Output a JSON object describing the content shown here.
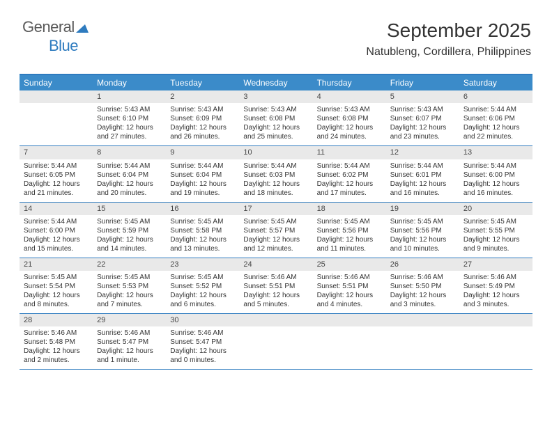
{
  "logo": {
    "part1": "General",
    "part2": "Blue"
  },
  "title": "September 2025",
  "location": "Natubleng, Cordillera, Philippines",
  "colors": {
    "header_bg": "#3b8bc9",
    "header_border": "#2e7bbf",
    "daynum_bg": "#e9e9e9",
    "text": "#333333",
    "logo_dark": "#5a5a5a",
    "logo_blue": "#2e7bbf"
  },
  "dow": [
    "Sunday",
    "Monday",
    "Tuesday",
    "Wednesday",
    "Thursday",
    "Friday",
    "Saturday"
  ],
  "weeks": [
    [
      {
        "empty": true
      },
      {
        "d": "1",
        "sr": "Sunrise: 5:43 AM",
        "ss": "Sunset: 6:10 PM",
        "dl1": "Daylight: 12 hours",
        "dl2": "and 27 minutes."
      },
      {
        "d": "2",
        "sr": "Sunrise: 5:43 AM",
        "ss": "Sunset: 6:09 PM",
        "dl1": "Daylight: 12 hours",
        "dl2": "and 26 minutes."
      },
      {
        "d": "3",
        "sr": "Sunrise: 5:43 AM",
        "ss": "Sunset: 6:08 PM",
        "dl1": "Daylight: 12 hours",
        "dl2": "and 25 minutes."
      },
      {
        "d": "4",
        "sr": "Sunrise: 5:43 AM",
        "ss": "Sunset: 6:08 PM",
        "dl1": "Daylight: 12 hours",
        "dl2": "and 24 minutes."
      },
      {
        "d": "5",
        "sr": "Sunrise: 5:43 AM",
        "ss": "Sunset: 6:07 PM",
        "dl1": "Daylight: 12 hours",
        "dl2": "and 23 minutes."
      },
      {
        "d": "6",
        "sr": "Sunrise: 5:44 AM",
        "ss": "Sunset: 6:06 PM",
        "dl1": "Daylight: 12 hours",
        "dl2": "and 22 minutes."
      }
    ],
    [
      {
        "d": "7",
        "sr": "Sunrise: 5:44 AM",
        "ss": "Sunset: 6:05 PM",
        "dl1": "Daylight: 12 hours",
        "dl2": "and 21 minutes."
      },
      {
        "d": "8",
        "sr": "Sunrise: 5:44 AM",
        "ss": "Sunset: 6:04 PM",
        "dl1": "Daylight: 12 hours",
        "dl2": "and 20 minutes."
      },
      {
        "d": "9",
        "sr": "Sunrise: 5:44 AM",
        "ss": "Sunset: 6:04 PM",
        "dl1": "Daylight: 12 hours",
        "dl2": "and 19 minutes."
      },
      {
        "d": "10",
        "sr": "Sunrise: 5:44 AM",
        "ss": "Sunset: 6:03 PM",
        "dl1": "Daylight: 12 hours",
        "dl2": "and 18 minutes."
      },
      {
        "d": "11",
        "sr": "Sunrise: 5:44 AM",
        "ss": "Sunset: 6:02 PM",
        "dl1": "Daylight: 12 hours",
        "dl2": "and 17 minutes."
      },
      {
        "d": "12",
        "sr": "Sunrise: 5:44 AM",
        "ss": "Sunset: 6:01 PM",
        "dl1": "Daylight: 12 hours",
        "dl2": "and 16 minutes."
      },
      {
        "d": "13",
        "sr": "Sunrise: 5:44 AM",
        "ss": "Sunset: 6:00 PM",
        "dl1": "Daylight: 12 hours",
        "dl2": "and 16 minutes."
      }
    ],
    [
      {
        "d": "14",
        "sr": "Sunrise: 5:44 AM",
        "ss": "Sunset: 6:00 PM",
        "dl1": "Daylight: 12 hours",
        "dl2": "and 15 minutes."
      },
      {
        "d": "15",
        "sr": "Sunrise: 5:45 AM",
        "ss": "Sunset: 5:59 PM",
        "dl1": "Daylight: 12 hours",
        "dl2": "and 14 minutes."
      },
      {
        "d": "16",
        "sr": "Sunrise: 5:45 AM",
        "ss": "Sunset: 5:58 PM",
        "dl1": "Daylight: 12 hours",
        "dl2": "and 13 minutes."
      },
      {
        "d": "17",
        "sr": "Sunrise: 5:45 AM",
        "ss": "Sunset: 5:57 PM",
        "dl1": "Daylight: 12 hours",
        "dl2": "and 12 minutes."
      },
      {
        "d": "18",
        "sr": "Sunrise: 5:45 AM",
        "ss": "Sunset: 5:56 PM",
        "dl1": "Daylight: 12 hours",
        "dl2": "and 11 minutes."
      },
      {
        "d": "19",
        "sr": "Sunrise: 5:45 AM",
        "ss": "Sunset: 5:56 PM",
        "dl1": "Daylight: 12 hours",
        "dl2": "and 10 minutes."
      },
      {
        "d": "20",
        "sr": "Sunrise: 5:45 AM",
        "ss": "Sunset: 5:55 PM",
        "dl1": "Daylight: 12 hours",
        "dl2": "and 9 minutes."
      }
    ],
    [
      {
        "d": "21",
        "sr": "Sunrise: 5:45 AM",
        "ss": "Sunset: 5:54 PM",
        "dl1": "Daylight: 12 hours",
        "dl2": "and 8 minutes."
      },
      {
        "d": "22",
        "sr": "Sunrise: 5:45 AM",
        "ss": "Sunset: 5:53 PM",
        "dl1": "Daylight: 12 hours",
        "dl2": "and 7 minutes."
      },
      {
        "d": "23",
        "sr": "Sunrise: 5:45 AM",
        "ss": "Sunset: 5:52 PM",
        "dl1": "Daylight: 12 hours",
        "dl2": "and 6 minutes."
      },
      {
        "d": "24",
        "sr": "Sunrise: 5:46 AM",
        "ss": "Sunset: 5:51 PM",
        "dl1": "Daylight: 12 hours",
        "dl2": "and 5 minutes."
      },
      {
        "d": "25",
        "sr": "Sunrise: 5:46 AM",
        "ss": "Sunset: 5:51 PM",
        "dl1": "Daylight: 12 hours",
        "dl2": "and 4 minutes."
      },
      {
        "d": "26",
        "sr": "Sunrise: 5:46 AM",
        "ss": "Sunset: 5:50 PM",
        "dl1": "Daylight: 12 hours",
        "dl2": "and 3 minutes."
      },
      {
        "d": "27",
        "sr": "Sunrise: 5:46 AM",
        "ss": "Sunset: 5:49 PM",
        "dl1": "Daylight: 12 hours",
        "dl2": "and 3 minutes."
      }
    ],
    [
      {
        "d": "28",
        "sr": "Sunrise: 5:46 AM",
        "ss": "Sunset: 5:48 PM",
        "dl1": "Daylight: 12 hours",
        "dl2": "and 2 minutes."
      },
      {
        "d": "29",
        "sr": "Sunrise: 5:46 AM",
        "ss": "Sunset: 5:47 PM",
        "dl1": "Daylight: 12 hours",
        "dl2": "and 1 minute."
      },
      {
        "d": "30",
        "sr": "Sunrise: 5:46 AM",
        "ss": "Sunset: 5:47 PM",
        "dl1": "Daylight: 12 hours",
        "dl2": "and 0 minutes."
      },
      {
        "empty": true
      },
      {
        "empty": true
      },
      {
        "empty": true
      },
      {
        "empty": true
      }
    ]
  ]
}
